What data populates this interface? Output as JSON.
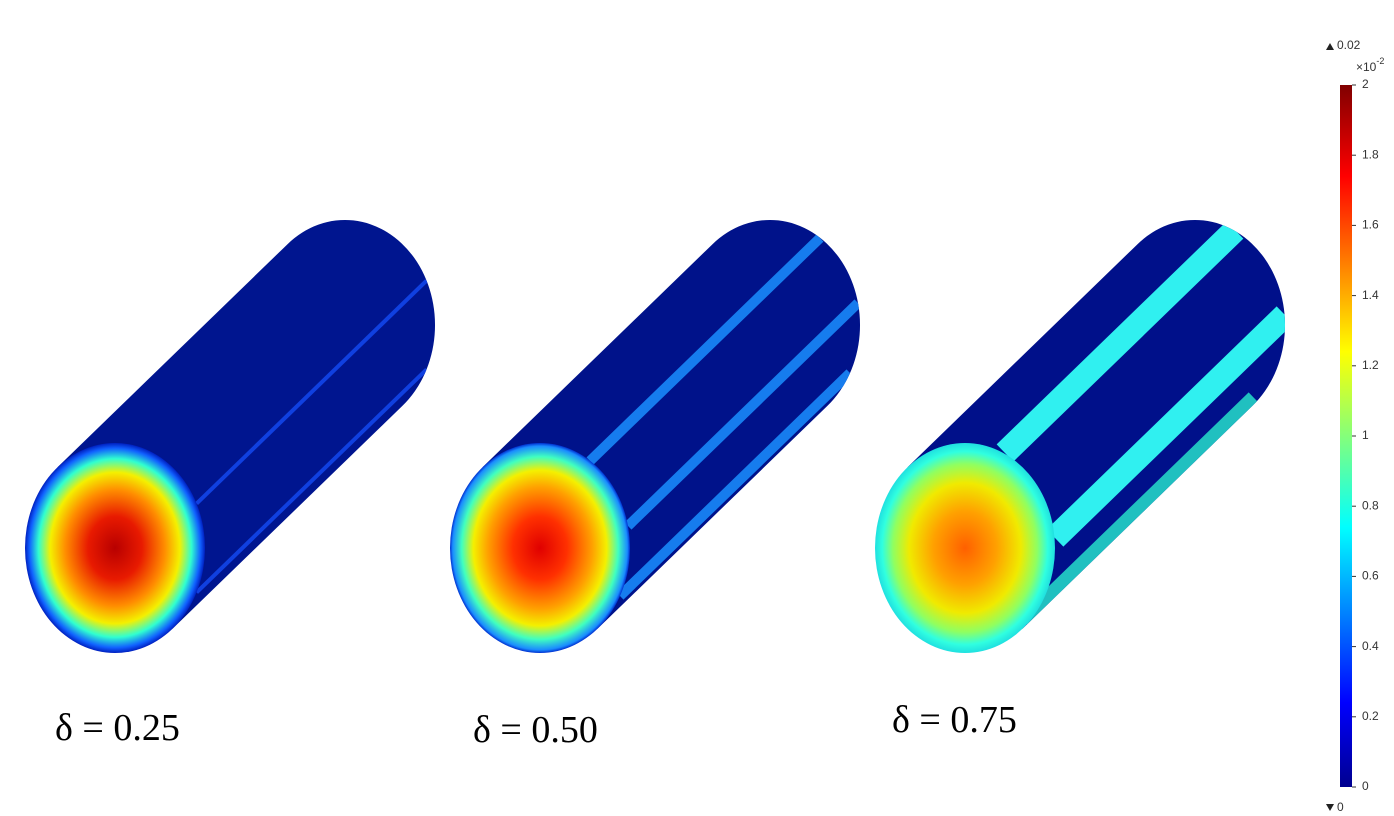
{
  "panels": [
    {
      "label": "δ = 0.25"
    },
    {
      "label": "δ = 0.50"
    },
    {
      "label": "δ = 0.75"
    }
  ],
  "colorbar": {
    "max_label": 0.02,
    "min_label": 0,
    "multiplier": "×10",
    "exponent": "-2",
    "lim": [
      0,
      2
    ],
    "ticks": [
      0,
      0.2,
      0.4,
      0.6,
      0.8,
      1,
      1.2,
      1.4,
      1.6,
      1.8,
      2
    ]
  }
}
